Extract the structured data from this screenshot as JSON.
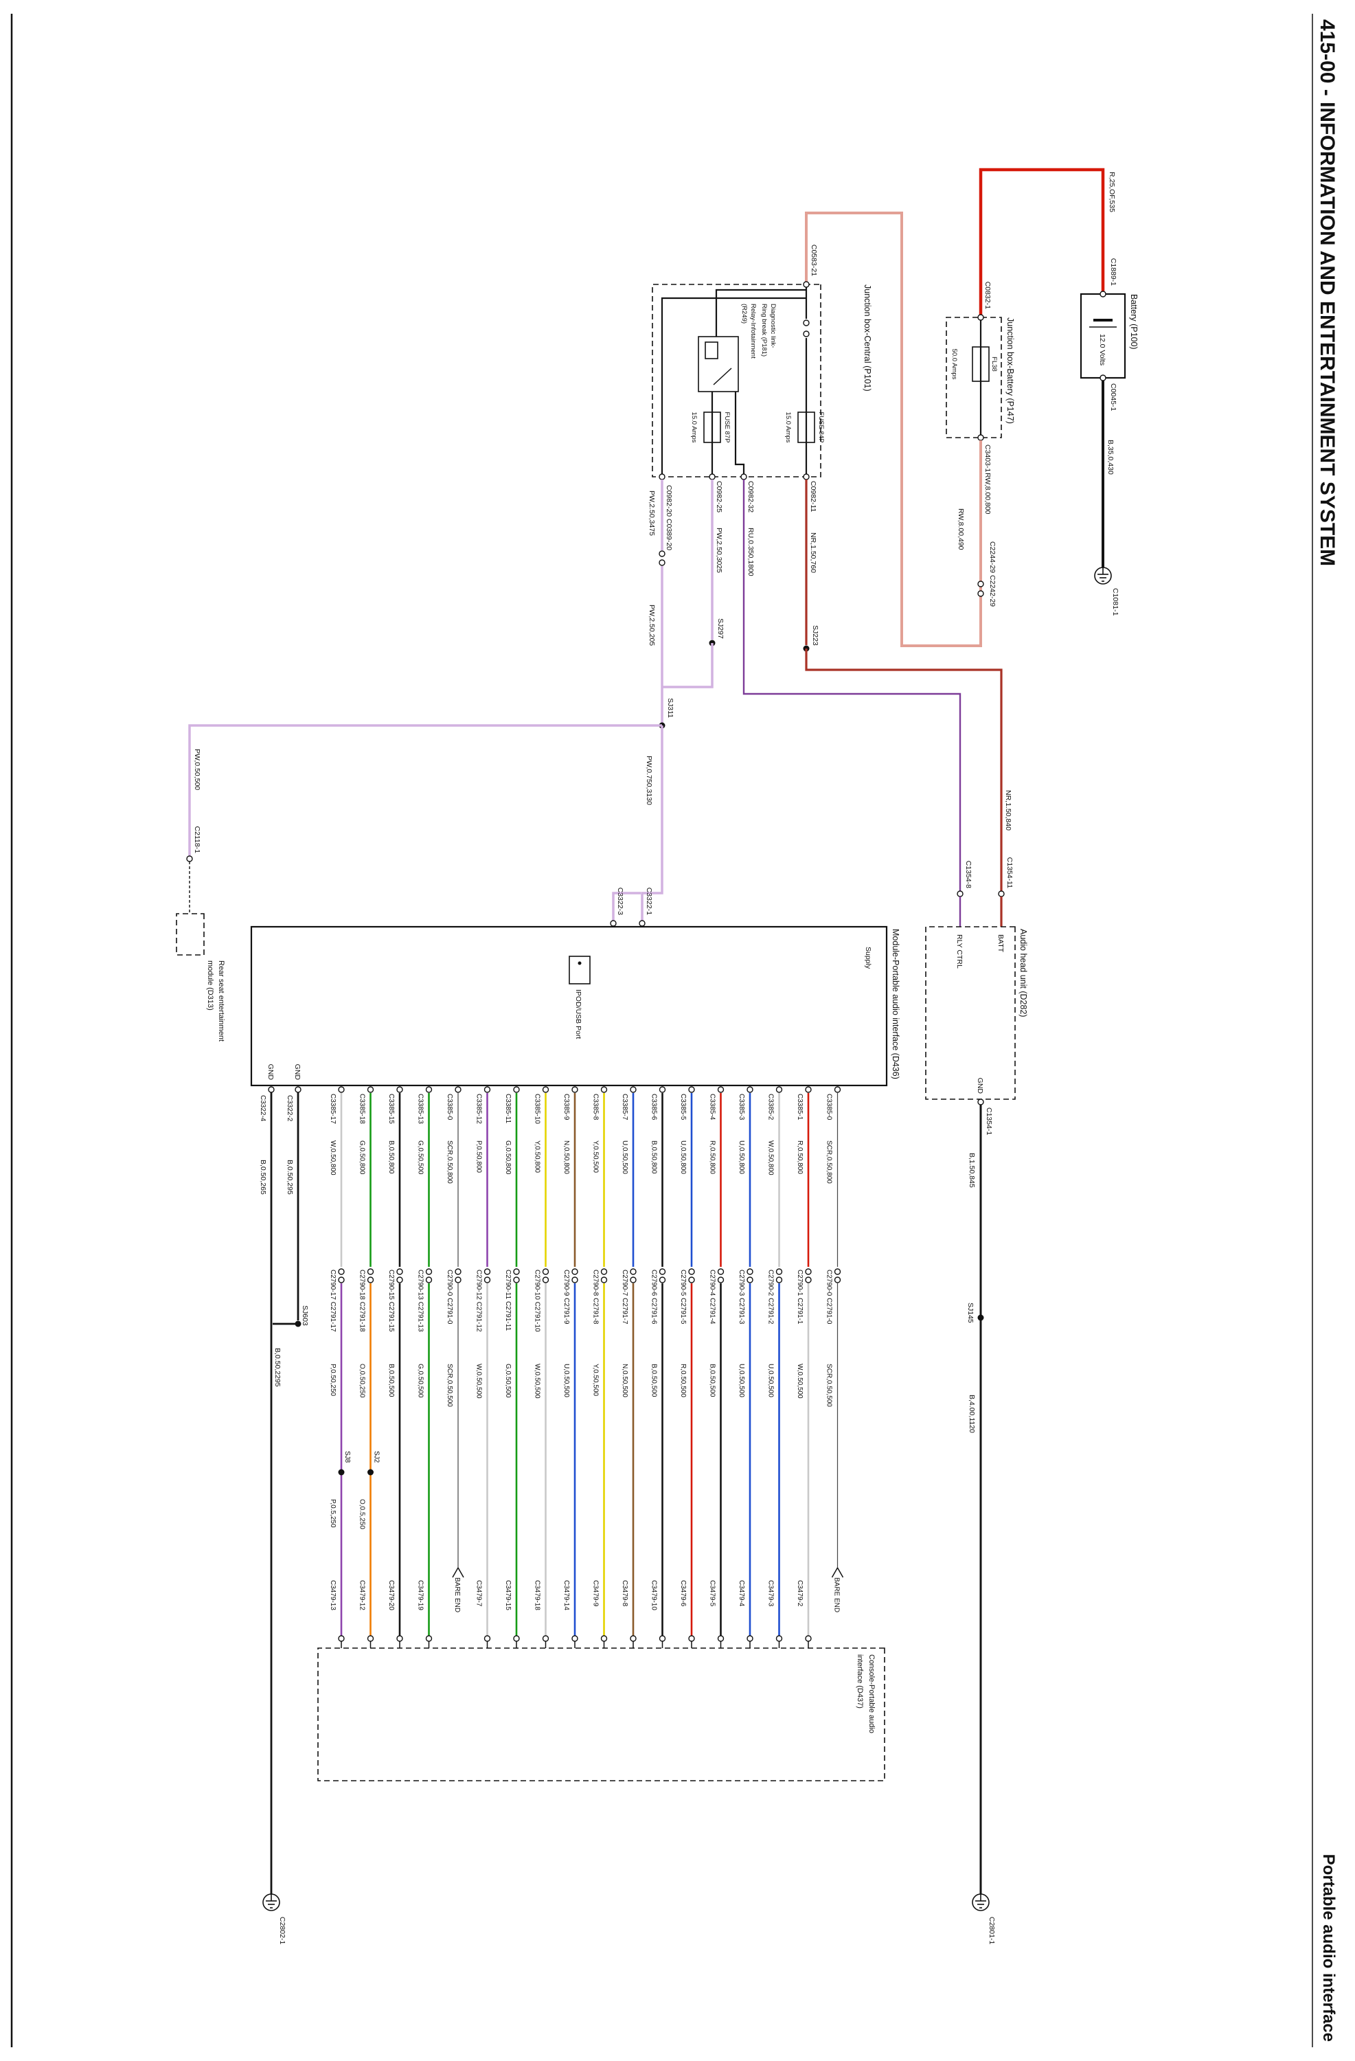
{
  "header": {
    "title": "415-00 - INFORMATION AND ENTERTAINMENT SYSTEM",
    "subtitle": "Portable audio interface"
  },
  "colors": {
    "R": "#d6190a",
    "RW": "#e2a095",
    "NR": "#a93226",
    "PW": "#d2b2e0",
    "RU": "#7d3c98",
    "W": "#c9c9c9",
    "G": "#169c16",
    "B": "#141414",
    "P": "#8e44ad",
    "O": "#f07d00",
    "Y": "#e5d400",
    "N": "#8a5a2b",
    "U": "#1f4fd0",
    "SCR": "#444444",
    "BLACK": "#141414"
  },
  "battery": {
    "label": "Battery (P100)",
    "volts": "12.0 Volts",
    "conn_pos": "C1889-1",
    "pos_wire": "R,25,OF,535",
    "conn_neg": "C0045-1",
    "neg_wire": "B,35,0,430",
    "ground": "C1081-1"
  },
  "jb_battery": {
    "label": "Junction box-Battery (P147)",
    "conn_in": "C0832-1",
    "fuse": "FL38",
    "fuse_amps": "50.0 Amps",
    "conn_out": "C3403-1",
    "wire_out": "RW,8.00,800",
    "inline_conn": "C2244-29 C2242-29",
    "wire_out2": "RW,8.00,490"
  },
  "jb_central": {
    "label": "Junction box-Central (P101)",
    "conn_in": "C0583-21",
    "diag_line1": "Diagnostic link-",
    "diag_line2": "Ring break (P181)",
    "relay_line1": "Relay-Infotainment",
    "relay_line2": "(R249)",
    "fuse_a": "FUSE 84P",
    "fuse_a_amps": "15.0 Amps",
    "fuse_b": "FUSE 87P",
    "fuse_b_amps": "15.0 Amps",
    "pin_11": "C0982-11",
    "pin_32": "C0982-32",
    "pin_25": "C0982-25",
    "pin_20": "C0982-20 C0389-20"
  },
  "nets": {
    "nr1": "NR,1.50,760",
    "sj223": "SJ223",
    "nr2": "NR,1.50,840",
    "ru": "RU,0.350,1800",
    "pw1": "PW,2.50,3025",
    "sj297": "SJ297",
    "pw2": "PW,2.50,3475",
    "pw3": "PW,2.50,205",
    "sj311": "SJ311",
    "pw4": "PW,0.750,3130",
    "pw5": "PW,0.50,500",
    "conn_rear": "C2118-1"
  },
  "rear_seat": {
    "line1": "Rear seat entertainment",
    "line2": "module (D313)"
  },
  "head_unit": {
    "label": "Audio head unit (D282)",
    "conn_batt": "C1354-11",
    "conn_rly": "C1354-8",
    "pin_batt": "BATT",
    "pin_rly": "RLY CTRL",
    "pin_gnd": "GND",
    "conn_gnd": "C1354-1",
    "wire1": "B,1.50,845",
    "sj": "SJ145",
    "wire2": "B,4.00,1120",
    "ground": "C2801-1"
  },
  "module": {
    "label": "Module-Portable audio interface (D436)",
    "supply": "Supply",
    "port": "IPOD/USB Port",
    "conn_supply1": "C3322-1",
    "conn_supply2": "C3322-3",
    "gnd1_label": "GND",
    "gnd2_label": "GND",
    "conn_gnd1": "C3322-2",
    "conn_gnd2": "C3322-4",
    "gnd1_wire": "B,0.50,295",
    "gnd2_wire": "B,0.50,265",
    "sj": "SJ603",
    "gnd_wire2": "B,0.50,2295",
    "ground": "C2802-1"
  },
  "console": {
    "line1": "Console-Portable audio",
    "line2": "interface (D437)"
  },
  "columns": [
    {
      "pin": "C3385-17",
      "wire1": "W,0.50,800",
      "color1": "W",
      "mid": "C2790-17 C2791-17",
      "wire2": "P,0.50,250",
      "color2": "P",
      "sj": "SJ8",
      "wire3": "P,0.5,250",
      "end": "C3479-13"
    },
    {
      "pin": "C3385-18",
      "wire1": "G,0.50,800",
      "color1": "G",
      "mid": "C2790-18 C2791-18",
      "wire2": "O,0.50,250",
      "color2": "O",
      "sj": "SJ2",
      "wire3": "O,0.5,250",
      "end": "C3479-12"
    },
    {
      "pin": "C3385-15",
      "wire1": "B,0.50,800",
      "color1": "B",
      "mid": "C2790-15 C2791-15",
      "wire2": "B,0.50,500",
      "color2": "B",
      "end": "C3479-20"
    },
    {
      "pin": "C3385-13",
      "wire1": "G,0.50,500",
      "color1": "G",
      "mid": "C2790-13 C2791-13",
      "wire2": "G,0.50,500",
      "color2": "G",
      "end": "C3479-19"
    },
    {
      "pin": "C3385-0",
      "wire1": "SCR,0.50,800",
      "color1": "SCR",
      "mid": "C2790-0 C2791-0",
      "wire2": "SCR,0.50,500",
      "color2": "SCR",
      "end": "BARE END",
      "bare": true
    },
    {
      "pin": "C3385-12",
      "wire1": "P,0.50,800",
      "color1": "P",
      "mid": "C2790-12 C2791-12",
      "wire2": "W,0.50,500",
      "color2": "W",
      "end": "C3479-7"
    },
    {
      "pin": "C3385-11",
      "wire1": "G,0.50,800",
      "color1": "G",
      "mid": "C2790-11 C2791-11",
      "wire2": "G,0.50,500",
      "color2": "G",
      "end": "C3479-15"
    },
    {
      "pin": "C3385-10",
      "wire1": "Y,0.50,800",
      "color1": "Y",
      "mid": "C2790-10 C2791-10",
      "wire2": "W,0.50,500",
      "color2": "W",
      "end": "C3479-18"
    },
    {
      "pin": "C3385-9",
      "wire1": "N,0.50,800",
      "color1": "N",
      "mid": "C2790-9 C2791-9",
      "wire2": "U,0.50,500",
      "color2": "U",
      "end": "C3479-14"
    },
    {
      "pin": "C3385-8",
      "wire1": "Y,0.50,500",
      "color1": "Y",
      "mid": "C2790-8 C2791-8",
      "wire2": "Y,0.50,500",
      "color2": "Y",
      "end": "C3479-9"
    },
    {
      "pin": "C3385-7",
      "wire1": "U,0.50,500",
      "color1": "U",
      "mid": "C2790-7 C2791-7",
      "wire2": "N,0.50,500",
      "color2": "N",
      "end": "C3479-8"
    },
    {
      "pin": "C3385-6",
      "wire1": "B,0.50,800",
      "color1": "B",
      "mid": "C2790-6 C2791-6",
      "wire2": "B,0.50,500",
      "color2": "B",
      "end": "C3479-10"
    },
    {
      "pin": "C3385-5",
      "wire1": "U,0.50,800",
      "color1": "U",
      "mid": "C2790-5 C2791-5",
      "wire2": "R,0.50,500",
      "color2": "R",
      "end": "C3479-6"
    },
    {
      "pin": "C3385-4",
      "wire1": "R,0.50,800",
      "color1": "R",
      "mid": "C2790-4 C2791-4",
      "wire2": "B,0.50,500",
      "color2": "B",
      "end": "C3479-5"
    },
    {
      "pin": "C3385-3",
      "wire1": "U,0.50,800",
      "color1": "U",
      "mid": "C2790-3 C2791-3",
      "wire2": "U,0.50,500",
      "color2": "U",
      "end": "C3479-4"
    },
    {
      "pin": "C3385-2",
      "wire1": "W,0.50,800",
      "color1": "W",
      "mid": "C2790-2 C2791-2",
      "wire2": "U,0.50,500",
      "color2": "U",
      "end": "C3479-3"
    },
    {
      "pin": "C3385-1",
      "wire1": "R,0.50,800",
      "color1": "R",
      "mid": "C2790-1 C2791-1",
      "wire2": "W,0.50,500",
      "color2": "W",
      "end": "C3479-2"
    },
    {
      "pin": "C3385-0",
      "wire1": "SCR,0.50,800",
      "color1": "SCR",
      "mid": "C2790-0 C2791-0",
      "wire2": "SCR,0.50,500",
      "color2": "SCR",
      "end": "BARE END",
      "bare": true
    }
  ]
}
